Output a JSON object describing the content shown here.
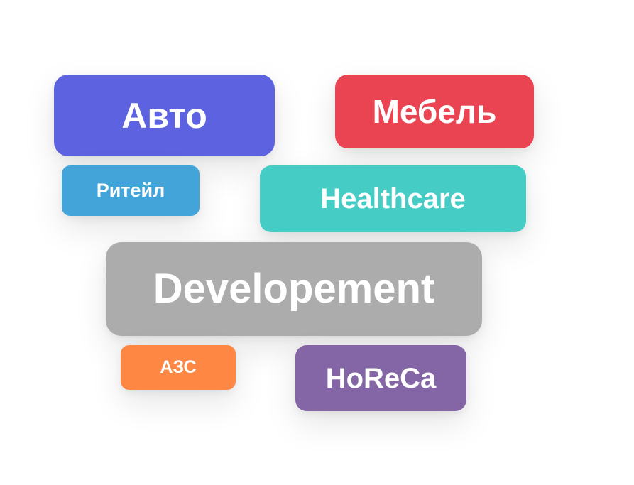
{
  "tags": [
    {
      "label": "Авто",
      "color": "#5c62e0"
    },
    {
      "label": "Мебель",
      "color": "#ea4453"
    },
    {
      "label": "Ритейл",
      "color": "#42a4d8"
    },
    {
      "label": "Healthcare",
      "color": "#45cdc5"
    },
    {
      "label": "Developement",
      "color": "#acacac"
    },
    {
      "label": "АЗС",
      "color": "#fd8743"
    },
    {
      "label": "HoReCa",
      "color": "#8466a6"
    }
  ]
}
